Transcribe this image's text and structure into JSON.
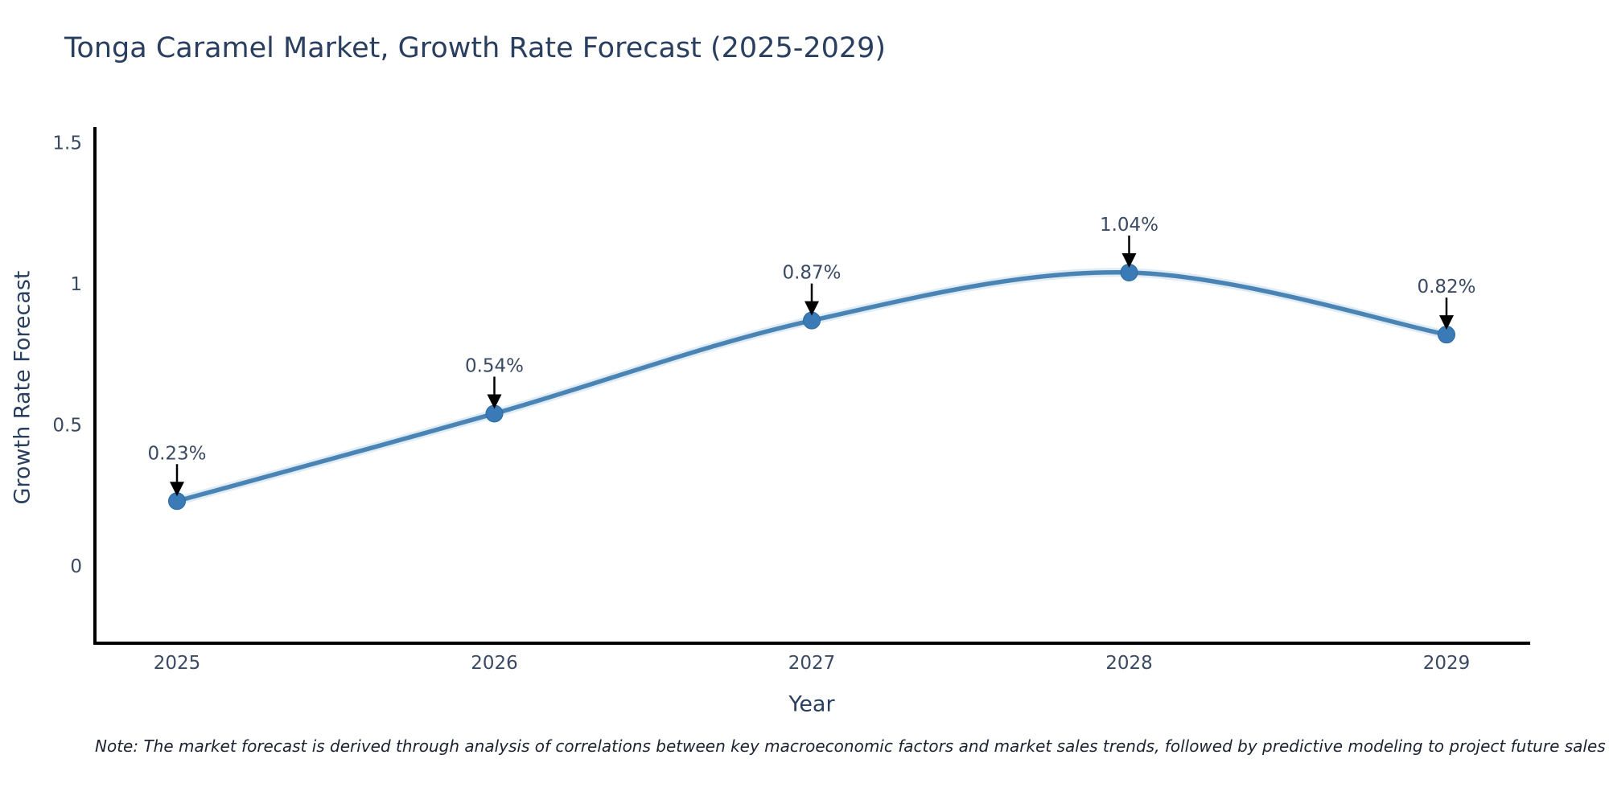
{
  "chart_data": {
    "type": "line",
    "title": "Tonga Caramel Market, Growth Rate Forecast (2025-2029)",
    "xlabel": "Year",
    "ylabel": "Growth Rate Forecast",
    "categories": [
      "2025",
      "2026",
      "2027",
      "2028",
      "2029"
    ],
    "values": [
      0.23,
      0.54,
      0.87,
      1.04,
      0.82
    ],
    "point_labels": [
      "0.23%",
      "0.54%",
      "0.87%",
      "1.04%",
      "0.82%"
    ],
    "y_ticks": [
      0,
      0.5,
      1,
      1.5
    ],
    "y_tick_labels": [
      "0",
      "0.5",
      "1",
      "1.5"
    ],
    "ylim": [
      -0.27,
      1.55
    ],
    "grid": false,
    "legend": "none",
    "marker_style": "circle",
    "annotation_arrows": "down"
  },
  "colors": {
    "line": "#4a84b4",
    "line_halo": "#bad4e8",
    "marker": "#3a7ab6",
    "marker_edge": "#2d6aa0",
    "axis": "#000000",
    "arrow": "#000000",
    "title_text": "#2a3f5f",
    "axis_text": "#3b4a63",
    "note_text": "#1c2230",
    "background": "#ffffff"
  },
  "note": {
    "text": "Note: The market forecast is derived through analysis of correlations between key macroeconomic factors and market sales trends, followed by predictive modeling to project future sales"
  }
}
